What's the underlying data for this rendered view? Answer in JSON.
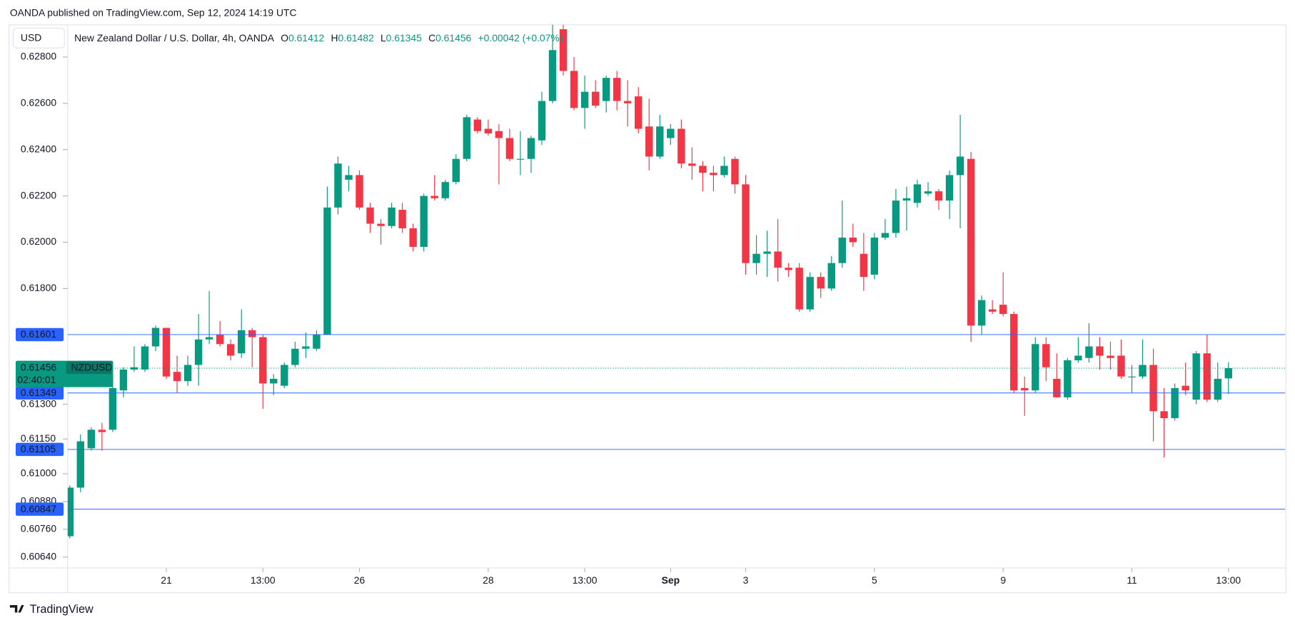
{
  "header": {
    "text": "OANDA published on TradingView.com, Sep 12, 2024 14:19 UTC"
  },
  "footer": {
    "brand": "TradingView"
  },
  "chart_data": {
    "type": "candlestick",
    "currency": "USD",
    "title": "New Zealand Dollar / U.S. Dollar, 4h, OANDA",
    "ohlc_keys": [
      "O",
      "H",
      "L",
      "C"
    ],
    "change": "+0.00042 (+0.07%)",
    "symbol": "NZDUSD",
    "countdown": "02:40:01",
    "up_color": "#089981",
    "down_color": "#f23645",
    "level_color": "#2962ff",
    "levels": [
      0.61601,
      0.61349,
      0.61105,
      0.60847
    ],
    "ylim": [
      0.60593,
      0.62939
    ],
    "yticks": [
      {
        "value": 0.628,
        "label": "0.62800"
      },
      {
        "value": 0.626,
        "label": "0.62600"
      },
      {
        "value": 0.624,
        "label": "0.62400"
      },
      {
        "value": 0.622,
        "label": "0.62200"
      },
      {
        "value": 0.62,
        "label": "0.62000"
      },
      {
        "value": 0.618,
        "label": "0.61800"
      },
      {
        "value": 0.613,
        "label": "0.61300"
      },
      {
        "value": 0.6115,
        "label": "0.61150"
      },
      {
        "value": 0.61,
        "label": "0.61000"
      },
      {
        "value": 0.6088,
        "label": "0.60880"
      },
      {
        "value": 0.6076,
        "label": "0.60760"
      },
      {
        "value": 0.6064,
        "label": "0.60640"
      }
    ],
    "categories": [
      null,
      null,
      null,
      null,
      null,
      null,
      null,
      null,
      null,
      "21",
      null,
      null,
      null,
      null,
      null,
      null,
      null,
      null,
      "13:00",
      null,
      null,
      null,
      null,
      null,
      null,
      null,
      null,
      "26",
      null,
      null,
      null,
      null,
      null,
      null,
      null,
      null,
      null,
      null,
      null,
      "28",
      null,
      null,
      null,
      null,
      null,
      null,
      null,
      null,
      "13:00",
      null,
      null,
      null,
      null,
      null,
      null,
      null,
      "Sep",
      null,
      null,
      null,
      null,
      null,
      null,
      "3",
      null,
      null,
      null,
      null,
      null,
      null,
      null,
      null,
      null,
      null,
      null,
      "5",
      null,
      null,
      null,
      null,
      null,
      null,
      null,
      null,
      null,
      null,
      null,
      "9",
      null,
      null,
      null,
      null,
      null,
      null,
      null,
      null,
      null,
      null,
      null,
      "11",
      null,
      null,
      null,
      null,
      null,
      null,
      null,
      null,
      "13:00"
    ],
    "open": [
      0.6073,
      0.6094,
      0.6111,
      0.6119,
      0.6119,
      0.6136,
      0.6145,
      0.6145,
      0.6155,
      0.6163,
      0.6144,
      0.614,
      0.6147,
      0.6158,
      0.616,
      0.6156,
      0.6152,
      0.6162,
      0.6159,
      0.6139,
      0.6138,
      0.6147,
      0.6154,
      0.6154,
      0.616,
      0.6215,
      0.6227,
      0.6229,
      0.6215,
      0.6208,
      0.6207,
      0.6214,
      0.6206,
      0.6198,
      0.622,
      0.6219,
      0.6226,
      0.6236,
      0.6253,
      0.6249,
      0.6248,
      0.6245,
      0.6236,
      0.6236,
      0.6244,
      0.6261,
      0.6292,
      0.6274,
      0.6258,
      0.6265,
      0.6261,
      0.6271,
      0.6261,
      0.6263,
      0.625,
      0.6237,
      0.6245,
      0.6249,
      0.6234,
      0.6233,
      0.623,
      0.6229,
      0.6236,
      0.6225,
      0.6191,
      0.6195,
      0.6196,
      0.6189,
      0.6189,
      0.6171,
      0.6185,
      0.618,
      0.6191,
      0.6202,
      0.6195,
      0.6186,
      0.6202,
      0.6204,
      0.6218,
      0.6217,
      0.6221,
      0.6222,
      0.6218,
      0.6229,
      0.6236,
      0.6164,
      0.6171,
      0.6173,
      0.6169,
      0.6137,
      0.6136,
      0.6156,
      0.6141,
      0.6133,
      0.6149,
      0.615,
      0.6155,
      0.6151,
      0.6151,
      0.6142,
      0.6142,
      0.6147,
      0.6127,
      0.6124,
      0.6138,
      0.6132,
      0.6152,
      0.6132,
      0.61412
    ],
    "high": [
      0.6095,
      0.6117,
      0.612,
      0.6122,
      0.614,
      0.6146,
      0.6155,
      0.6156,
      0.6164,
      0.6163,
      0.6151,
      0.6151,
      0.6169,
      0.6179,
      0.6166,
      0.6158,
      0.6171,
      0.6163,
      0.616,
      0.6143,
      0.6148,
      0.6157,
      0.6161,
      0.6162,
      0.6224,
      0.6237,
      0.6233,
      0.6231,
      0.6217,
      0.621,
      0.6217,
      0.6217,
      0.6208,
      0.6221,
      0.6229,
      0.6227,
      0.6238,
      0.6255,
      0.6254,
      0.6253,
      0.6251,
      0.6249,
      0.6248,
      0.6246,
      0.6265,
      0.6294,
      0.6294,
      0.628,
      0.6272,
      0.627,
      0.6272,
      0.6274,
      0.627,
      0.6267,
      0.6262,
      0.6255,
      0.6251,
      0.6253,
      0.6241,
      0.6235,
      0.6233,
      0.6237,
      0.6237,
      0.6229,
      0.6203,
      0.6205,
      0.621,
      0.6191,
      0.6191,
      0.6187,
      0.6187,
      0.6194,
      0.6218,
      0.6208,
      0.6204,
      0.6204,
      0.621,
      0.6223,
      0.6224,
      0.6227,
      0.6226,
      0.6223,
      0.6231,
      0.6255,
      0.6239,
      0.6177,
      0.6175,
      0.6187,
      0.617,
      0.6142,
      0.6159,
      0.6159,
      0.6152,
      0.615,
      0.6159,
      0.6165,
      0.6159,
      0.6157,
      0.6158,
      0.6147,
      0.6158,
      0.6154,
      0.6137,
      0.6139,
      0.6148,
      0.6153,
      0.616,
      0.6148,
      0.61482
    ],
    "low": [
      0.6072,
      0.6092,
      0.611,
      0.611,
      0.6118,
      0.6133,
      0.6144,
      0.6144,
      0.6153,
      0.6141,
      0.6135,
      0.6138,
      0.6138,
      0.6156,
      0.6155,
      0.6149,
      0.615,
      0.6146,
      0.6128,
      0.6134,
      0.6137,
      0.6146,
      0.615,
      0.6153,
      0.616,
      0.6212,
      0.6222,
      0.6214,
      0.6204,
      0.6199,
      0.6206,
      0.6204,
      0.6196,
      0.6196,
      0.6218,
      0.6218,
      0.6225,
      0.6235,
      0.6247,
      0.6246,
      0.6225,
      0.6235,
      0.6229,
      0.623,
      0.6242,
      0.626,
      0.6272,
      0.6257,
      0.6249,
      0.6258,
      0.6256,
      0.6257,
      0.625,
      0.6247,
      0.6231,
      0.6236,
      0.6242,
      0.6232,
      0.6227,
      0.6222,
      0.6222,
      0.6228,
      0.6221,
      0.6186,
      0.6186,
      0.6185,
      0.6183,
      0.6185,
      0.617,
      0.617,
      0.6176,
      0.6179,
      0.6189,
      0.6198,
      0.6179,
      0.6184,
      0.6201,
      0.6202,
      0.6205,
      0.6215,
      0.622,
      0.6214,
      0.621,
      0.6206,
      0.6157,
      0.616,
      0.6169,
      0.6168,
      0.6135,
      0.6125,
      0.6135,
      0.614,
      0.6133,
      0.6132,
      0.6148,
      0.6148,
      0.6145,
      0.6145,
      0.6141,
      0.6135,
      0.6141,
      0.6114,
      0.6107,
      0.6123,
      0.6134,
      0.613,
      0.6131,
      0.6131,
      0.61345
    ],
    "close": [
      0.6094,
      0.6114,
      0.6119,
      0.6118,
      0.6137,
      0.6145,
      0.6146,
      0.6155,
      0.6163,
      0.6142,
      0.614,
      0.6147,
      0.6158,
      0.6159,
      0.6156,
      0.6151,
      0.6162,
      0.6159,
      0.6139,
      0.6141,
      0.6147,
      0.6154,
      0.6155,
      0.616,
      0.6215,
      0.6234,
      0.6229,
      0.6215,
      0.6208,
      0.6207,
      0.6215,
      0.6206,
      0.6198,
      0.622,
      0.6219,
      0.6226,
      0.6236,
      0.6254,
      0.6248,
      0.6247,
      0.6245,
      0.6236,
      0.6236,
      0.6245,
      0.6261,
      0.6283,
      0.6274,
      0.6258,
      0.6265,
      0.6259,
      0.6271,
      0.6261,
      0.626,
      0.6249,
      0.6237,
      0.625,
      0.6249,
      0.6234,
      0.6233,
      0.623,
      0.6229,
      0.6233,
      0.6225,
      0.6191,
      0.6195,
      0.6196,
      0.6189,
      0.6188,
      0.6171,
      0.6185,
      0.618,
      0.6191,
      0.6202,
      0.62,
      0.6185,
      0.6202,
      0.6204,
      0.6218,
      0.6219,
      0.6225,
      0.6222,
      0.6218,
      0.6229,
      0.6237,
      0.6164,
      0.6175,
      0.617,
      0.6169,
      0.6136,
      0.6136,
      0.6156,
      0.6146,
      0.6133,
      0.6149,
      0.6151,
      0.6155,
      0.6151,
      0.615,
      0.6142,
      0.6142,
      0.6147,
      0.6127,
      0.6124,
      0.6137,
      0.6136,
      0.6152,
      0.6132,
      0.6141,
      0.61456
    ]
  }
}
